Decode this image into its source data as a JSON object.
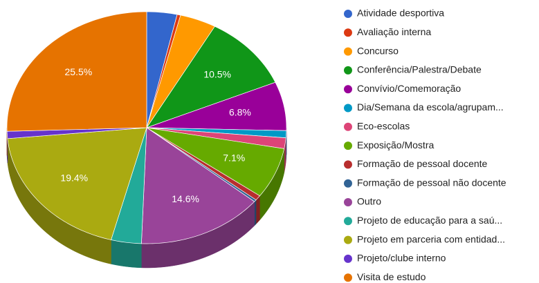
{
  "chart_data": {
    "type": "pie3d",
    "categories": [
      "Atividade desportiva",
      "Avaliação interna",
      "Concurso",
      "Conferência/Palestra/Debate",
      "Convívio/Comemoração",
      "Dia/Semana da escola/agrupam...",
      "Eco-escolas",
      "Exposição/Mostra",
      "Formação de pessoal docente",
      "Formação de pessoal não docente",
      "Outro",
      "Projeto de educação para a saú...",
      "Projeto em parceria com entidad...",
      "Projeto/clube interno",
      "Visita de estudo"
    ],
    "values": [
      3.5,
      0.4,
      4.2,
      10.5,
      6.8,
      1.0,
      1.5,
      7.1,
      0.7,
      0.3,
      14.6,
      3.5,
      19.4,
      1.0,
      25.5
    ],
    "value_labels": [
      null,
      null,
      null,
      "10.5%",
      "6.8%",
      null,
      null,
      "7.1%",
      null,
      null,
      "14.6%",
      null,
      "19.4%",
      null,
      "25.5%"
    ],
    "colors": [
      "#3366cc",
      "#dc3912",
      "#ff9900",
      "#109618",
      "#990099",
      "#0099c6",
      "#dd4477",
      "#66aa00",
      "#b82e2e",
      "#316395",
      "#994499",
      "#22aa99",
      "#aaaa11",
      "#6633cc",
      "#e67300"
    ]
  }
}
